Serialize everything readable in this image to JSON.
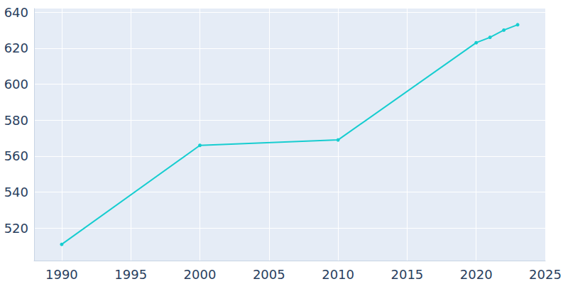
{
  "chart_data": {
    "type": "line",
    "x": [
      1990,
      2000,
      2010,
      2020,
      2021,
      2022,
      2023
    ],
    "values": [
      511,
      566,
      569,
      623,
      626,
      630,
      633
    ],
    "color": "#17cdd0",
    "marker": "circle",
    "xlim": [
      1988,
      2025
    ],
    "xticks": [
      1990,
      1995,
      2000,
      2005,
      2010,
      2015,
      2020,
      2025
    ],
    "ylim": [
      502,
      642
    ],
    "yticks": [
      520,
      540,
      560,
      580,
      600,
      620,
      640
    ],
    "grid": true
  }
}
